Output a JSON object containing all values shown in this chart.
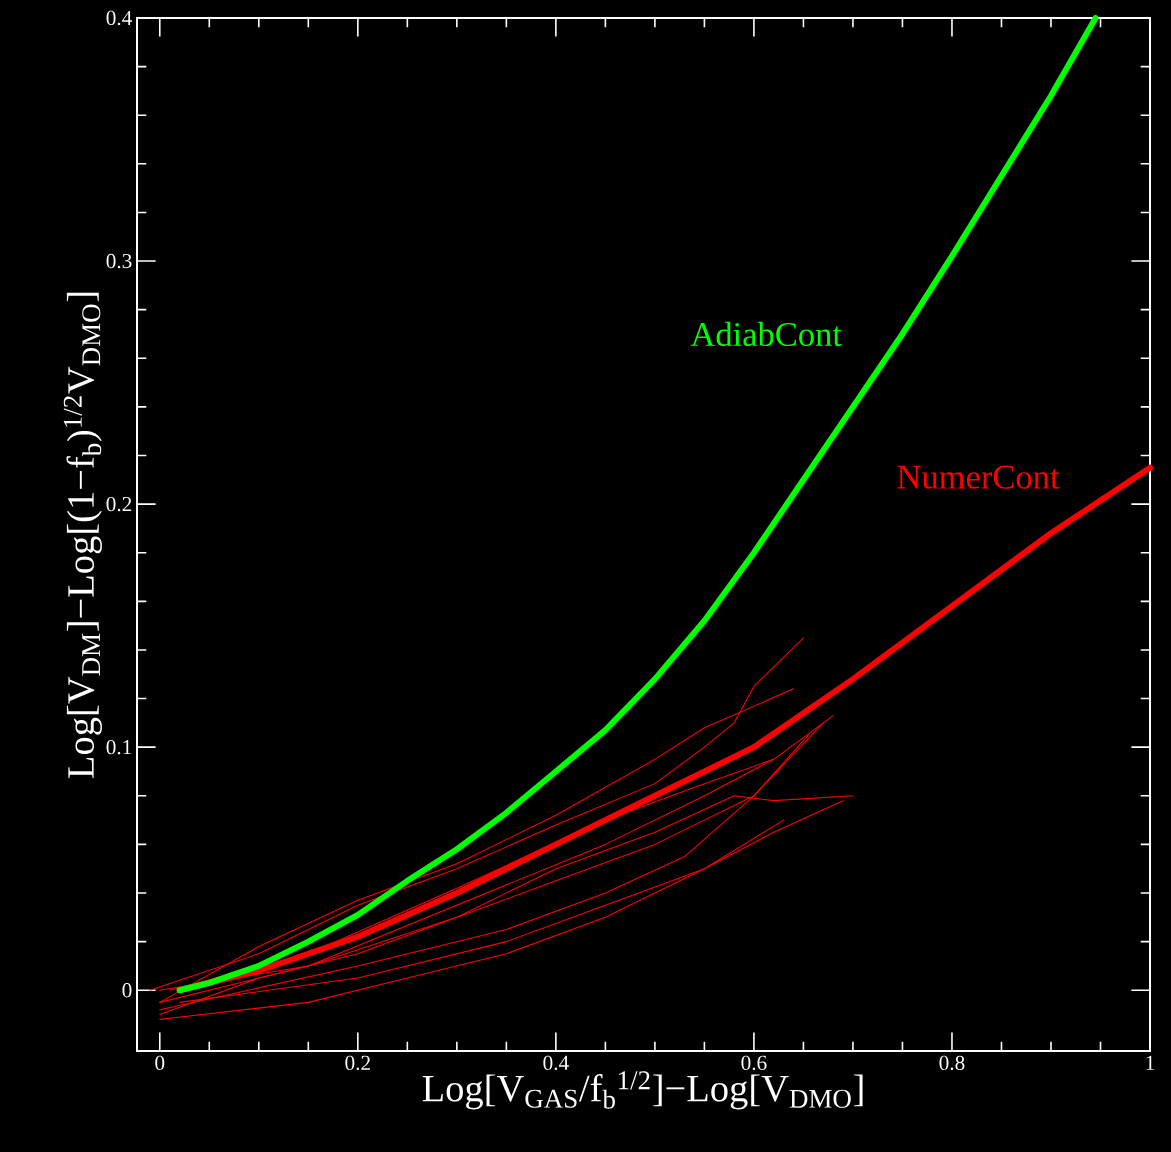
{
  "chart_data": {
    "type": "line",
    "xlabel": "Log[V$_{GAS}$/f$_{b}$$^{1/2}$]−Log[V$_{DMO}$]",
    "ylabel": "Log[V$_{DM}$]−Log[(1−f$_{b}$)$^{1/2}$V$_{DMO}$]",
    "xlim": [
      -0.023,
      1.0
    ],
    "ylim": [
      -0.025,
      0.4
    ],
    "xticks": [
      0,
      0.2,
      0.4,
      0.6,
      0.8,
      1
    ],
    "yticks": [
      0,
      0.1,
      0.2,
      0.3,
      0.4
    ],
    "series": [
      {
        "color": "#ff0000",
        "x": [
          -0.01,
          0.1,
          0.2,
          0.3,
          0.4,
          0.5,
          0.55,
          0.58,
          0.6,
          0.65
        ],
        "values": [
          0,
          0.015,
          0.035,
          0.05,
          0.068,
          0.085,
          0.1,
          0.11,
          0.125,
          0.145
        ]
      },
      {
        "color": "#ff0000",
        "x": [
          0.0,
          0.1,
          0.2,
          0.3,
          0.4,
          0.5,
          0.55,
          0.64
        ],
        "values": [
          -0.005,
          0.018,
          0.037,
          0.052,
          0.072,
          0.095,
          0.108,
          0.124
        ]
      },
      {
        "color": "#ff0000",
        "x": [
          0.0,
          0.1,
          0.2,
          0.3,
          0.4,
          0.5,
          0.58,
          0.62,
          0.7
        ],
        "values": [
          -0.01,
          0.005,
          0.015,
          0.03,
          0.05,
          0.065,
          0.08,
          0.078,
          0.08
        ]
      },
      {
        "color": "#ff0000",
        "x": [
          0.0,
          0.15,
          0.25,
          0.35,
          0.45,
          0.55,
          0.62,
          0.69
        ],
        "values": [
          -0.012,
          -0.005,
          0.005,
          0.015,
          0.03,
          0.05,
          0.065,
          0.078
        ]
      },
      {
        "color": "#ff0000",
        "x": [
          0.02,
          0.2,
          0.35,
          0.45,
          0.55,
          0.63
        ],
        "values": [
          -0.005,
          0.005,
          0.02,
          0.035,
          0.05,
          0.07
        ]
      },
      {
        "color": "#ff0000",
        "x": [
          0.0,
          0.15,
          0.3,
          0.4,
          0.5,
          0.6,
          0.67
        ],
        "values": [
          -0.005,
          0.01,
          0.03,
          0.045,
          0.06,
          0.08,
          0.11
        ]
      },
      {
        "color": "#ff0000",
        "x": [
          0.01,
          0.15,
          0.3,
          0.45,
          0.55,
          0.62,
          0.68
        ],
        "values": [
          0,
          0.015,
          0.042,
          0.07,
          0.085,
          0.095,
          0.113
        ]
      },
      {
        "color": "#ff0000",
        "x": [
          0.0,
          0.15,
          0.3,
          0.45,
          0.55,
          0.62
        ],
        "values": [
          0,
          0.01,
          0.035,
          0.06,
          0.08,
          0.095
        ]
      },
      {
        "color": "#ff0000",
        "x": [
          0.0,
          0.2,
          0.35,
          0.45,
          0.53,
          0.6,
          0.655
        ],
        "values": [
          -0.008,
          0.01,
          0.025,
          0.04,
          0.055,
          0.08,
          0.105
        ]
      },
      {
        "name": "NumerCont",
        "color": "#ff0000",
        "x": [
          0.02,
          0.1,
          0.2,
          0.3,
          0.4,
          0.5,
          0.6,
          0.7,
          0.8,
          0.9,
          1.0
        ],
        "values": [
          0,
          0.008,
          0.022,
          0.04,
          0.06,
          0.08,
          0.1,
          0.128,
          0.158,
          0.188,
          0.215
        ]
      },
      {
        "name": "AdiabCont",
        "color": "#00ff00",
        "x": [
          0.02,
          0.05,
          0.1,
          0.15,
          0.2,
          0.25,
          0.3,
          0.35,
          0.4,
          0.45,
          0.5,
          0.55,
          0.6,
          0.65,
          0.7,
          0.75,
          0.8,
          0.85,
          0.9,
          0.945
        ],
        "values": [
          0,
          0.003,
          0.01,
          0.02,
          0.031,
          0.045,
          0.058,
          0.073,
          0.09,
          0.107,
          0.128,
          0.152,
          0.18,
          0.21,
          0.24,
          0.27,
          0.302,
          0.335,
          0.368,
          0.4
        ]
      }
    ]
  }
}
